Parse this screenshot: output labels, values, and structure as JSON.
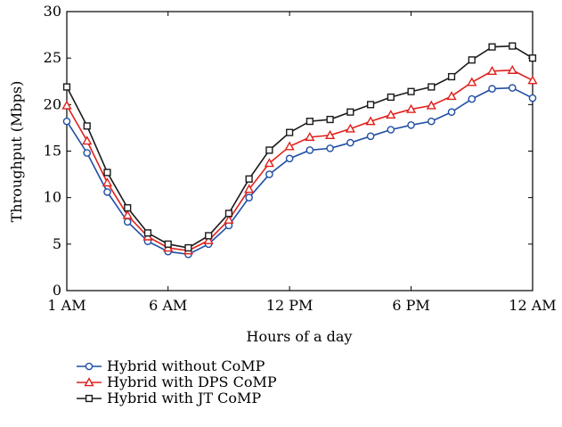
{
  "chart_data": {
    "type": "line",
    "xlabel": "Hours of a day",
    "ylabel": "Throughput (Mbps)",
    "xlim": [
      1,
      24
    ],
    "ylim": [
      0,
      30
    ],
    "x_ticks": [
      {
        "x": 1,
        "label": "1 AM"
      },
      {
        "x": 6,
        "label": "6 AM"
      },
      {
        "x": 12,
        "label": "12 PM"
      },
      {
        "x": 18,
        "label": "6 PM"
      },
      {
        "x": 24,
        "label": "12 AM"
      }
    ],
    "y_ticks": [
      0,
      5,
      10,
      15,
      20,
      25,
      30
    ],
    "grid": false,
    "legend_position": "bottom-left",
    "x": [
      1,
      2,
      3,
      4,
      5,
      6,
      7,
      8,
      9,
      10,
      11,
      12,
      13,
      14,
      15,
      16,
      17,
      18,
      19,
      20,
      21,
      22,
      23,
      24
    ],
    "series": [
      {
        "name": "Hybrid without CoMP",
        "color": "#1f4ea3",
        "marker": "circle",
        "values": [
          18.2,
          14.8,
          10.6,
          7.4,
          5.3,
          4.2,
          3.9,
          5.0,
          7.0,
          10.0,
          12.5,
          14.2,
          15.1,
          15.3,
          15.9,
          16.6,
          17.3,
          17.8,
          18.2,
          19.2,
          20.6,
          21.7,
          21.8,
          20.7
        ]
      },
      {
        "name": "Hybrid with DPS CoMP",
        "color": "#e0201b",
        "marker": "triangle",
        "values": [
          19.9,
          16.1,
          11.6,
          8.1,
          5.8,
          4.6,
          4.3,
          5.4,
          7.6,
          10.9,
          13.7,
          15.5,
          16.5,
          16.7,
          17.4,
          18.2,
          18.9,
          19.5,
          19.9,
          20.9,
          22.4,
          23.6,
          23.7,
          22.6
        ]
      },
      {
        "name": "Hybrid with JT CoMP",
        "color": "#1a1a1a",
        "marker": "square",
        "values": [
          21.9,
          17.7,
          12.7,
          8.9,
          6.2,
          5.0,
          4.6,
          5.9,
          8.3,
          12.0,
          15.1,
          17.0,
          18.2,
          18.4,
          19.2,
          20.0,
          20.8,
          21.4,
          21.9,
          23.0,
          24.8,
          26.2,
          26.3,
          25.0
        ]
      }
    ]
  }
}
